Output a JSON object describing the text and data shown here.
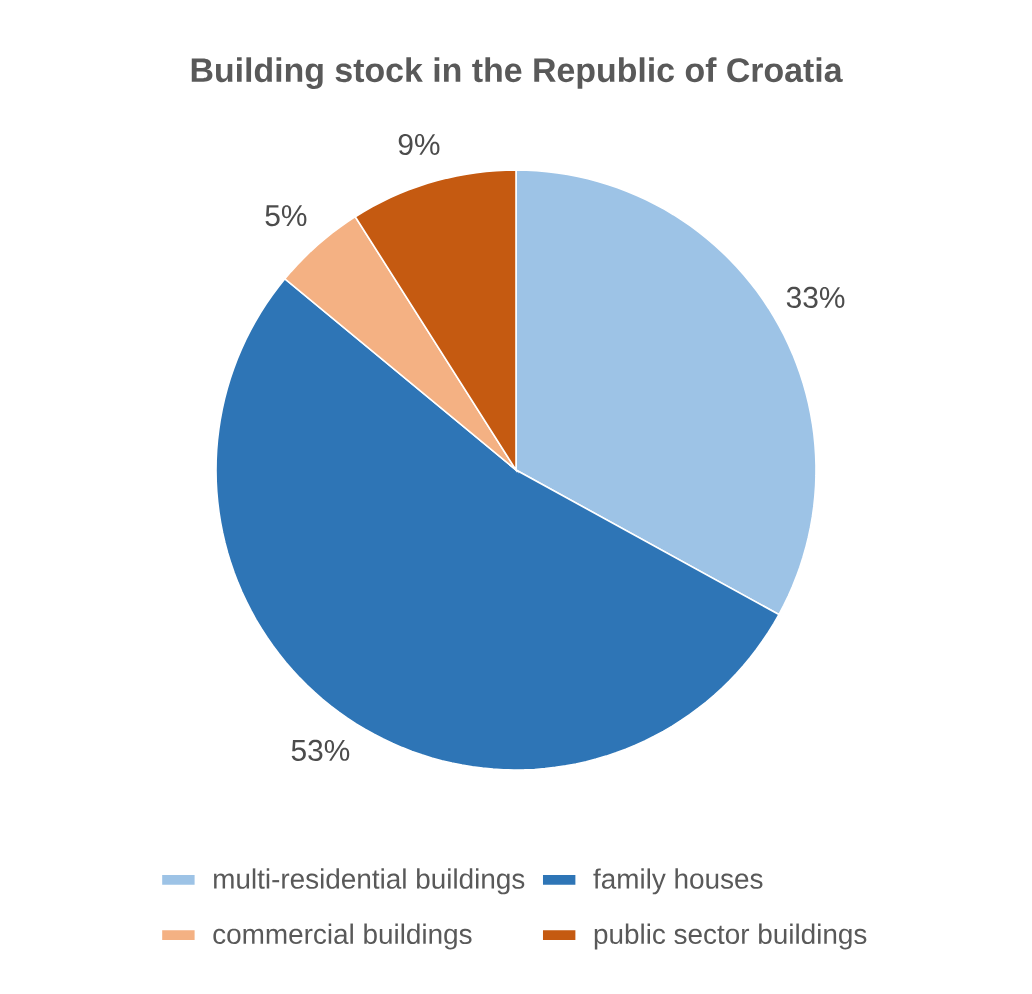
{
  "chart_data": {
    "type": "pie",
    "title": "Building stock in the Republic of Croatia",
    "categories": [
      "multi-residential buildings",
      "family houses",
      "commercial buildings",
      "public sector buildings"
    ],
    "values": [
      33,
      53,
      5,
      9
    ],
    "colors": [
      "#9dc3e6",
      "#2e75b6",
      "#f4b183",
      "#c55a11"
    ],
    "value_labels": [
      "33%",
      "53%",
      "5%",
      "9%"
    ],
    "legend": "bottom"
  }
}
